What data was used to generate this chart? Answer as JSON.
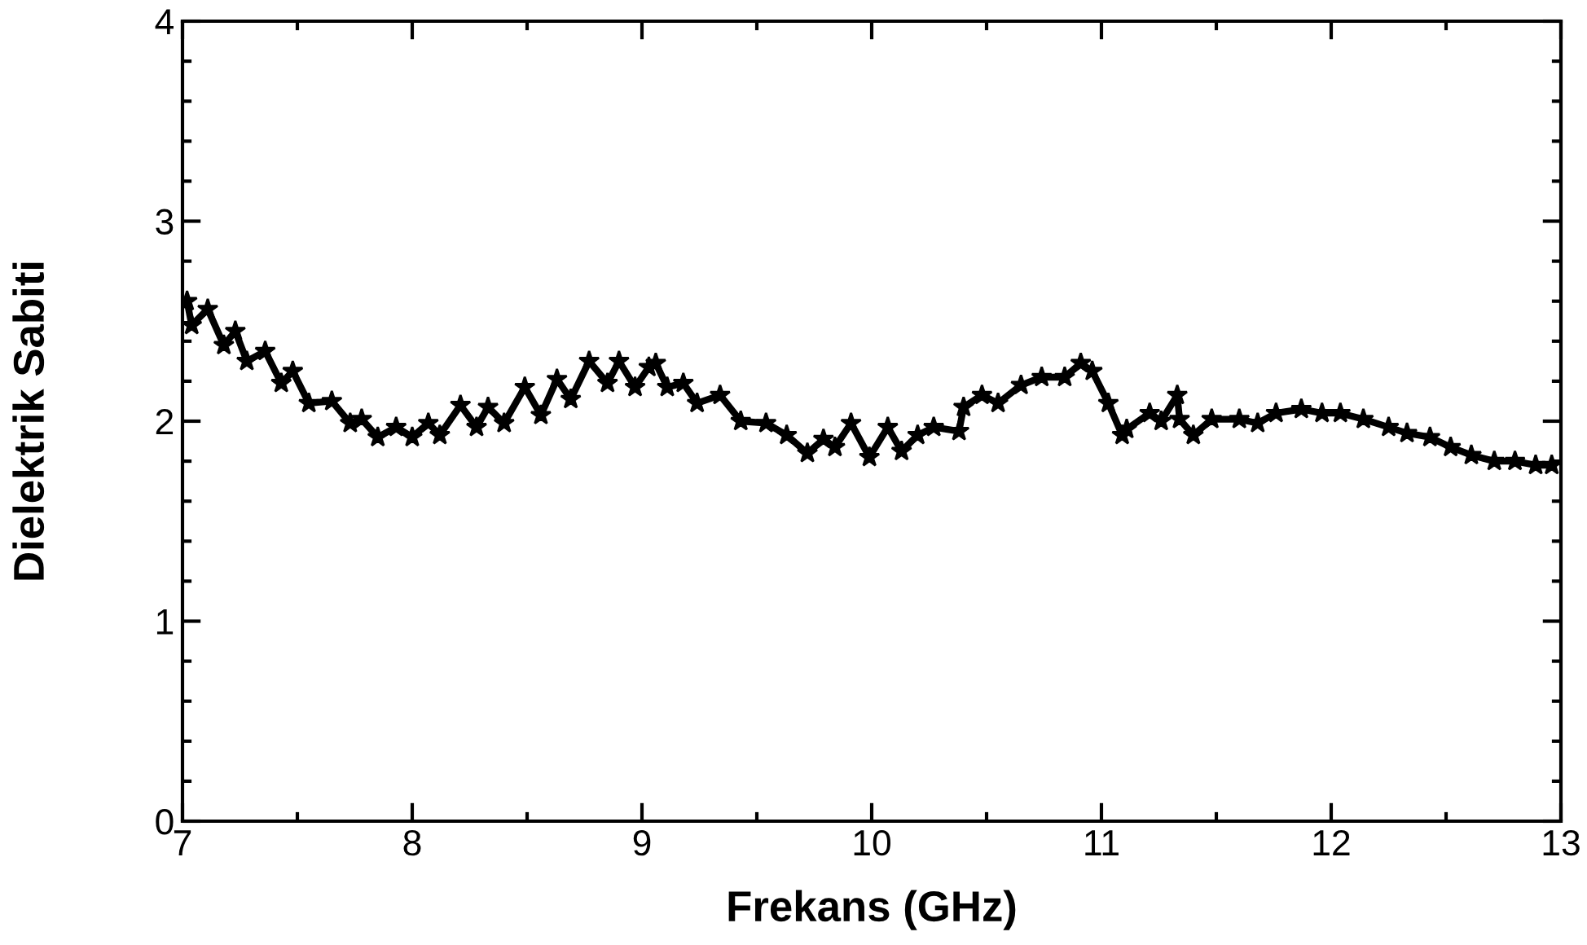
{
  "chart_data": {
    "type": "line",
    "xlabel": "Frekans (GHz)",
    "ylabel": "Dielektrik Sabiti",
    "xlim": [
      7,
      13
    ],
    "ylim": [
      0,
      4
    ],
    "xticks": [
      7,
      8,
      9,
      10,
      11,
      12,
      13
    ],
    "yticks": [
      0,
      1,
      2,
      3,
      4
    ],
    "grid": false,
    "legend": false,
    "marker": "star",
    "line_style": "solid",
    "series": [
      {
        "color": "#000000",
        "x": [
          7.02,
          7.04,
          7.11,
          7.18,
          7.23,
          7.28,
          7.36,
          7.43,
          7.48,
          7.55,
          7.65,
          7.73,
          7.78,
          7.85,
          7.93,
          8.0,
          8.07,
          8.12,
          8.21,
          8.28,
          8.33,
          8.4,
          8.49,
          8.56,
          8.63,
          8.69,
          8.77,
          8.85,
          8.9,
          8.97,
          9.03,
          9.06,
          9.11,
          9.18,
          9.24,
          9.34,
          9.43,
          9.54,
          9.63,
          9.72,
          9.79,
          9.84,
          9.91,
          9.99,
          10.07,
          10.13,
          10.2,
          10.27,
          10.38,
          10.4,
          10.48,
          10.55,
          10.65,
          10.74,
          10.84,
          10.91,
          10.96,
          11.03,
          11.09,
          11.11,
          11.21,
          11.26,
          11.33,
          11.34,
          11.4,
          11.48,
          11.6,
          11.68,
          11.76,
          11.87,
          11.96,
          12.04,
          12.14,
          12.25,
          12.33,
          12.43,
          12.52,
          12.61,
          12.71,
          12.8,
          12.89,
          12.96
        ],
        "values": [
          2.6,
          2.48,
          2.56,
          2.38,
          2.45,
          2.3,
          2.35,
          2.19,
          2.25,
          2.09,
          2.1,
          1.99,
          2.01,
          1.92,
          1.97,
          1.92,
          1.99,
          1.93,
          2.08,
          1.97,
          2.07,
          1.99,
          2.17,
          2.03,
          2.21,
          2.11,
          2.3,
          2.19,
          2.3,
          2.17,
          2.27,
          2.29,
          2.17,
          2.19,
          2.09,
          2.13,
          2.0,
          1.99,
          1.93,
          1.84,
          1.91,
          1.87,
          1.99,
          1.82,
          1.97,
          1.85,
          1.93,
          1.97,
          1.95,
          2.07,
          2.13,
          2.09,
          2.18,
          2.22,
          2.22,
          2.29,
          2.25,
          2.09,
          1.93,
          1.96,
          2.04,
          2.0,
          2.13,
          2.01,
          1.93,
          2.01,
          2.01,
          1.99,
          2.04,
          2.06,
          2.04,
          2.04,
          2.01,
          1.97,
          1.94,
          1.92,
          1.87,
          1.83,
          1.8,
          1.8,
          1.78,
          1.78
        ]
      }
    ]
  }
}
